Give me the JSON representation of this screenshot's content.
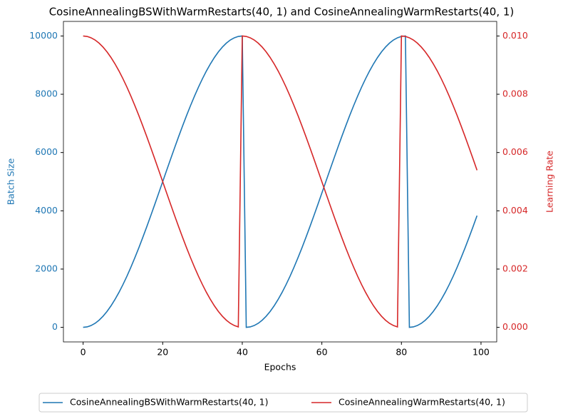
{
  "chart_data": {
    "type": "line",
    "title": "CosineAnnealingBSWithWarmRestarts(40, 1) and CosineAnnealingWarmRestarts(40, 1)",
    "xlabel": "Epochs",
    "ylabel": "Batch Size",
    "y2label": "Learning Rate",
    "x": [
      0,
      1,
      2,
      3,
      4,
      5,
      6,
      7,
      8,
      9,
      10,
      11,
      12,
      13,
      14,
      15,
      16,
      17,
      18,
      19,
      20,
      21,
      22,
      23,
      24,
      25,
      26,
      27,
      28,
      29,
      30,
      31,
      32,
      33,
      34,
      35,
      36,
      37,
      38,
      39,
      40,
      41,
      42,
      43,
      44,
      45,
      46,
      47,
      48,
      49,
      50,
      51,
      52,
      53,
      54,
      55,
      56,
      57,
      58,
      59,
      60,
      61,
      62,
      63,
      64,
      65,
      66,
      67,
      68,
      69,
      70,
      71,
      72,
      73,
      74,
      75,
      76,
      77,
      78,
      79,
      80,
      81,
      82,
      83,
      84,
      85,
      86,
      87,
      88,
      89,
      90,
      91,
      92,
      93,
      94,
      95,
      96,
      97,
      98,
      99
    ],
    "series": [
      {
        "name": "CosineAnnealingBSWithWarmRestarts(40, 1)",
        "color": "#1f77b4",
        "axis": "y",
        "values": [
          0,
          15,
          62,
          138,
          245,
          381,
          545,
          737,
          955,
          1198,
          1464,
          1753,
          2061,
          2388,
          2730,
          3087,
          3455,
          3833,
          4218,
          4608,
          5000,
          5392,
          5782,
          6167,
          6545,
          6913,
          7270,
          7612,
          7939,
          8247,
          8536,
          8802,
          9045,
          9263,
          9455,
          9619,
          9755,
          9862,
          9938,
          9985,
          10000,
          0,
          15,
          62,
          138,
          245,
          381,
          545,
          737,
          955,
          1198,
          1464,
          1753,
          2061,
          2388,
          2730,
          3087,
          3455,
          3833,
          4218,
          4608,
          5000,
          5392,
          5782,
          6167,
          6545,
          6913,
          7270,
          7612,
          7939,
          8247,
          8536,
          8802,
          9045,
          9263,
          9455,
          9619,
          9755,
          9862,
          9938,
          9985,
          10000,
          0,
          15,
          62,
          138,
          245,
          381,
          545,
          737,
          955,
          1198,
          1464,
          1753,
          2061,
          2388,
          2730,
          3087,
          3455,
          3833
        ]
      },
      {
        "name": "CosineAnnealingWarmRestarts(40, 1)",
        "color": "#d62728",
        "axis": "y2",
        "values": [
          0.01,
          0.009985,
          0.009938,
          0.009862,
          0.009755,
          0.009619,
          0.009455,
          0.009263,
          0.009045,
          0.008802,
          0.008536,
          0.008247,
          0.007939,
          0.007612,
          0.00727,
          0.006913,
          0.006545,
          0.006167,
          0.005782,
          0.005392,
          0.005,
          0.004608,
          0.004218,
          0.003833,
          0.003455,
          0.003087,
          0.00273,
          0.002388,
          0.002061,
          0.001753,
          0.001464,
          0.001198,
          0.000955,
          0.000737,
          0.000545,
          0.000381,
          0.000245,
          0.000138,
          6.2e-05,
          1.5e-05,
          0.01,
          0.009985,
          0.009938,
          0.009862,
          0.009755,
          0.009619,
          0.009455,
          0.009263,
          0.009045,
          0.008802,
          0.008536,
          0.008247,
          0.007939,
          0.007612,
          0.00727,
          0.006913,
          0.006545,
          0.006167,
          0.005782,
          0.005392,
          0.005,
          0.004608,
          0.004218,
          0.003833,
          0.003455,
          0.003087,
          0.00273,
          0.002388,
          0.002061,
          0.001753,
          0.001464,
          0.001198,
          0.000955,
          0.000737,
          0.000545,
          0.000381,
          0.000245,
          0.000138,
          6.2e-05,
          1.5e-05,
          0.01,
          0.009985,
          0.009938,
          0.009862,
          0.009755,
          0.009619,
          0.009455,
          0.009263,
          0.009045,
          0.008802,
          0.008536,
          0.008247,
          0.007939,
          0.007612,
          0.00727,
          0.006913,
          0.006545,
          0.006167,
          0.005782,
          0.005392
        ]
      }
    ],
    "xlim": [
      -4.95,
      103.95
    ],
    "xticks": [
      0,
      20,
      40,
      60,
      80,
      100
    ],
    "ylim": [
      -500,
      10500
    ],
    "yticks": [
      0,
      2000,
      4000,
      6000,
      8000,
      10000
    ],
    "y2lim": [
      -0.0005,
      0.0105
    ],
    "y2ticks": [
      {
        "value": 0,
        "label": "0.000"
      },
      {
        "value": 0.002,
        "label": "0.002"
      },
      {
        "value": 0.004,
        "label": "0.004"
      },
      {
        "value": 0.006,
        "label": "0.006"
      },
      {
        "value": 0.008,
        "label": "0.008"
      },
      {
        "value": 0.01,
        "label": "0.010"
      }
    ],
    "legend": "bottom",
    "grid": false
  }
}
